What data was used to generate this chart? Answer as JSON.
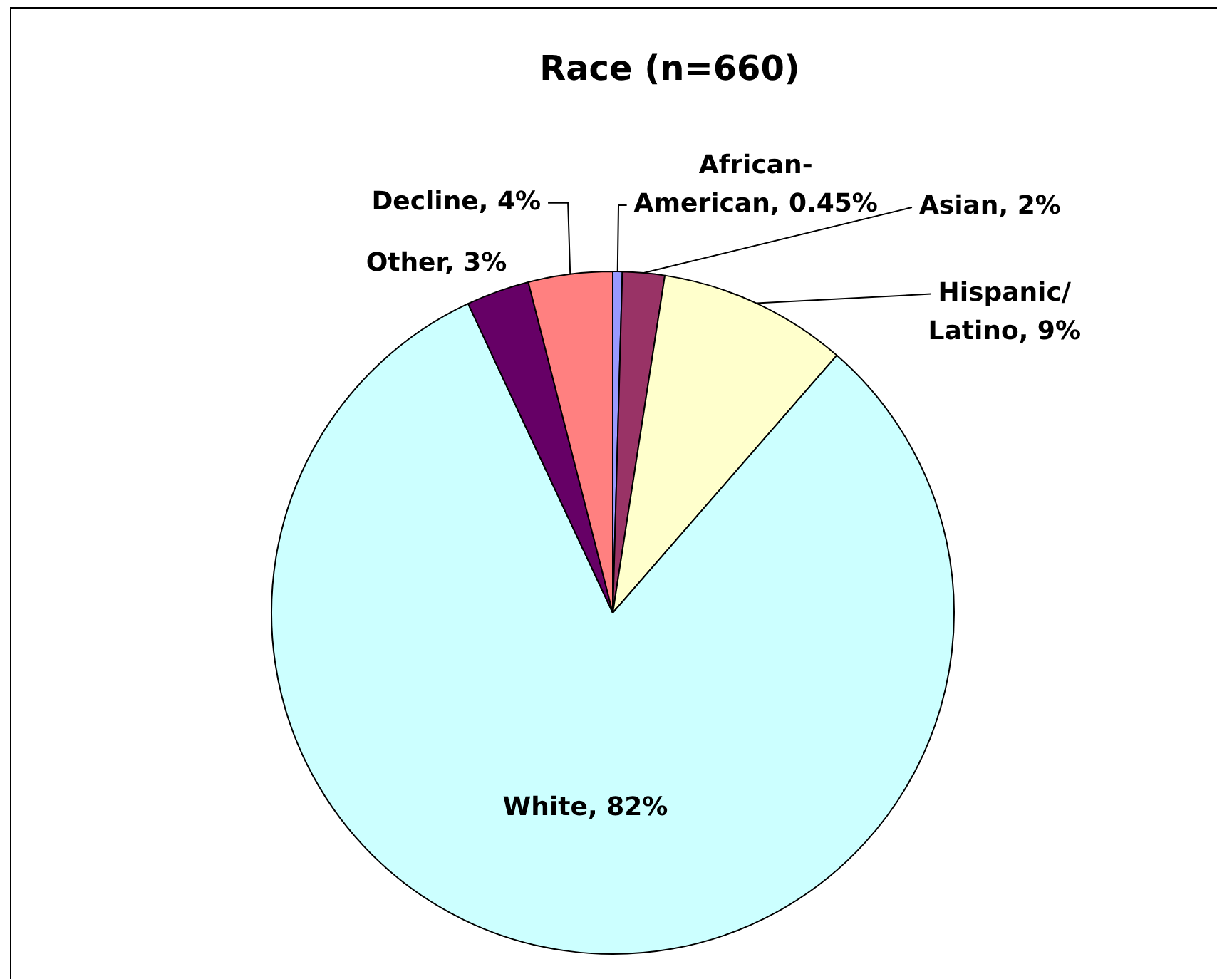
{
  "chart_data": {
    "type": "pie",
    "title": "Race (n=660)",
    "categories": [
      "African-American",
      "Asian",
      "Hispanic/Latino",
      "White",
      "Other",
      "Decline"
    ],
    "values": [
      0.45,
      2,
      9,
      82,
      3,
      4
    ],
    "colors": [
      "#9999ff",
      "#993366",
      "#ffffcc",
      "#ccffff",
      "#660066",
      "#ff8080"
    ],
    "value_labels": [
      "0.45%",
      "2%",
      "9%",
      "82%",
      "3%",
      "4%"
    ]
  }
}
